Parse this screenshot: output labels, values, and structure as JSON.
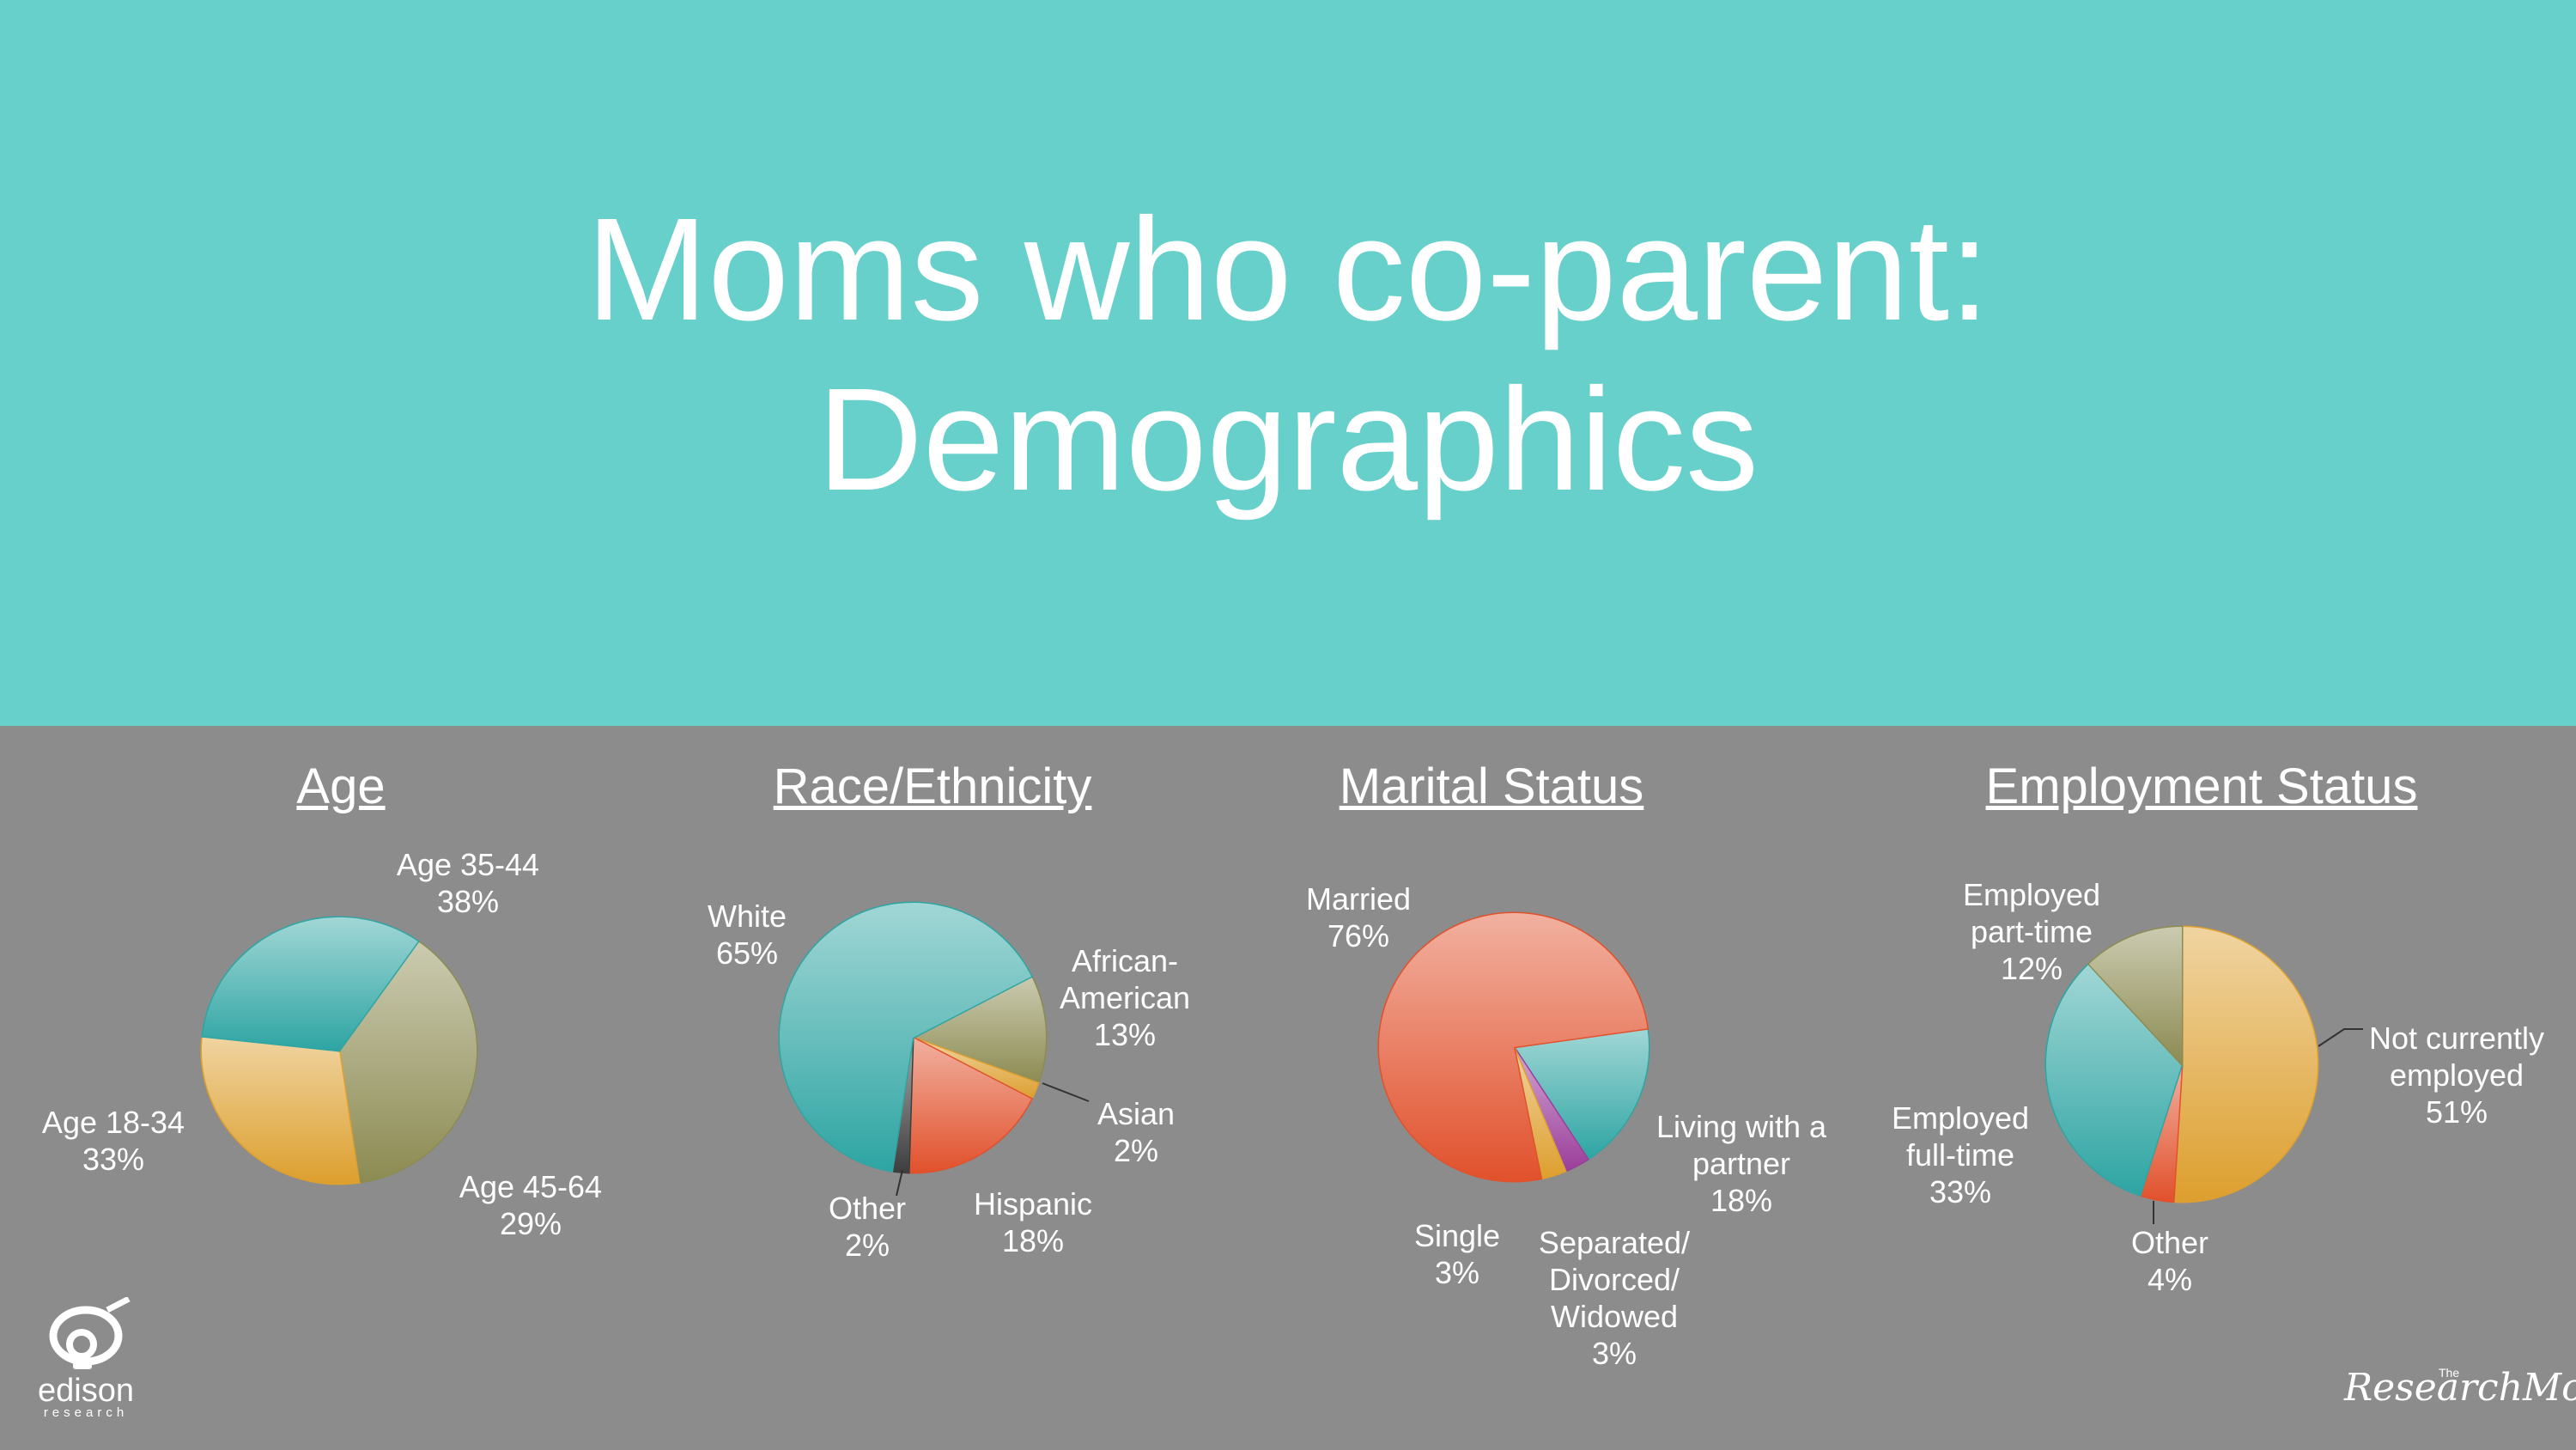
{
  "slide": {
    "title_line1": "Moms who co-parent:",
    "title_line2": "Demographics",
    "colors": {
      "header": "#67d0ca",
      "panel": "#8c8c8c",
      "text": "#ffffff"
    }
  },
  "logos": {
    "edison": {
      "name": "edison",
      "sub": "research"
    },
    "research_moms": {
      "the": "The",
      "name": "ResearchMoms"
    }
  },
  "chart_data": [
    {
      "type": "pie",
      "title": "Age",
      "slices": [
        {
          "label": [
            "Age 35-44",
            "38%"
          ],
          "value": 38,
          "color": "#8c8b52"
        },
        {
          "label": [
            "Age 45-64",
            "29%"
          ],
          "value": 29,
          "color": "#dd9f2e"
        },
        {
          "label": [
            "Age 18-34",
            "33%"
          ],
          "value": 33,
          "color": "#2ea5a3"
        }
      ]
    },
    {
      "type": "pie",
      "title": "Race/Ethnicity",
      "slices": [
        {
          "label": [
            "African-",
            "American",
            "13%"
          ],
          "value": 13,
          "color": "#8c8b52"
        },
        {
          "label": [
            "Asian",
            "2%"
          ],
          "value": 2,
          "color": "#dd9f2e"
        },
        {
          "label": [
            "Hispanic",
            "18%"
          ],
          "value": 18,
          "color": "#e1512c"
        },
        {
          "label": [
            "Other",
            "2%"
          ],
          "value": 2,
          "color": "#3e3e3e"
        },
        {
          "label": [
            "White",
            "65%"
          ],
          "value": 65,
          "color": "#2ea5a3"
        }
      ]
    },
    {
      "type": "pie",
      "title": "Marital Status",
      "slices": [
        {
          "label": [
            "Living with a",
            "partner",
            "18%"
          ],
          "value": 18,
          "color": "#2ea5a3"
        },
        {
          "label": [
            "Separated/",
            "Divorced/",
            "Widowed",
            "3%"
          ],
          "value": 3,
          "color": "#9b3e9b"
        },
        {
          "label": [
            "Single",
            "3%"
          ],
          "value": 3,
          "color": "#dd9f2e"
        },
        {
          "label": [
            "Married",
            "76%"
          ],
          "value": 76,
          "color": "#e1512c"
        }
      ]
    },
    {
      "type": "pie",
      "title": "Employment Status",
      "slices": [
        {
          "label": [
            "Not currently",
            "employed",
            "51%"
          ],
          "value": 51,
          "color": "#dd9f2e"
        },
        {
          "label": [
            "Other",
            "4%"
          ],
          "value": 4,
          "color": "#e1512c"
        },
        {
          "label": [
            "Employed",
            "full-time",
            "33%"
          ],
          "value": 33,
          "color": "#2ea5a3"
        },
        {
          "label": [
            "Employed",
            "part-time",
            "12%"
          ],
          "value": 12,
          "color": "#8c8b52"
        }
      ]
    }
  ]
}
